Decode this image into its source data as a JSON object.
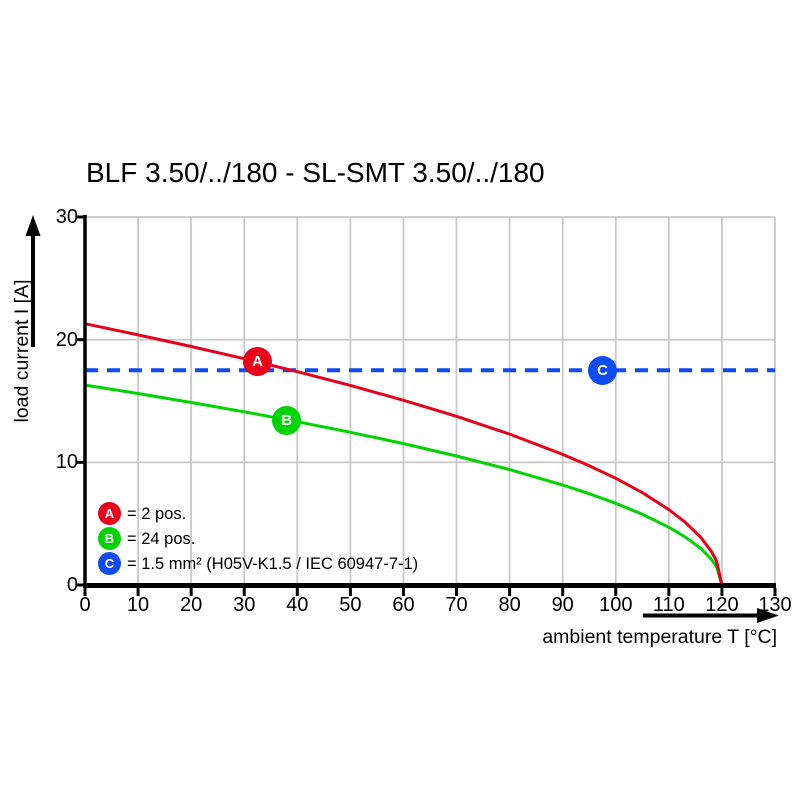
{
  "title": "BLF 3.50/../180 - SL-SMT 3.50/../180",
  "axes": {
    "x_label": "ambient temperature T [°C]",
    "y_label": "load current I [A]",
    "x_ticks": [
      0,
      10,
      20,
      30,
      40,
      50,
      60,
      70,
      80,
      90,
      100,
      110,
      120,
      130
    ],
    "y_ticks": [
      0,
      10,
      20,
      30
    ]
  },
  "colors": {
    "series_a_red": "#e8001b",
    "series_b_green": "#00d400",
    "series_c_blue": "#0d4cf2",
    "grid": "#c9c9c9",
    "axis": "#000000"
  },
  "legend": [
    {
      "key": "A",
      "color": "#e8001b",
      "label": "= 2 pos."
    },
    {
      "key": "B",
      "color": "#00d400",
      "label": "= 24 pos."
    },
    {
      "key": "C",
      "color": "#0d4cf2",
      "label": "= 1.5 mm² (H05V-K1.5 / IEC 60947-7-1)"
    }
  ],
  "markers": [
    {
      "letter": "A",
      "t": 32.5,
      "i": 18.2,
      "color": "#e8001b"
    },
    {
      "letter": "B",
      "t": 38.0,
      "i": 13.4,
      "color": "#00d400"
    },
    {
      "letter": "C",
      "t": 97.5,
      "i": 17.5,
      "color": "#0d4cf2"
    }
  ],
  "chart_data": {
    "type": "line",
    "title": "BLF 3.50/../180 - SL-SMT 3.50/../180",
    "xlabel": "ambient temperature T [°C]",
    "ylabel": "load current I [A]",
    "xlim": [
      0,
      130
    ],
    "ylim": [
      0,
      30
    ],
    "grid": true,
    "legend_position": "lower-left-inside",
    "series": [
      {
        "key": "A",
        "name": "A = 2 pos.",
        "color": "#e8001b",
        "style": "solid",
        "x": [
          0,
          10,
          20,
          30,
          40,
          50,
          60,
          70,
          80,
          90,
          95,
          100,
          105,
          110,
          113,
          116,
          118,
          119,
          120
        ],
        "values": [
          21.3,
          20.39,
          19.44,
          18.45,
          17.39,
          16.27,
          15.06,
          13.75,
          12.3,
          10.65,
          9.72,
          8.7,
          7.53,
          6.15,
          5.14,
          3.89,
          2.75,
          1.94,
          0
        ]
      },
      {
        "key": "B",
        "name": "B = 24 pos.",
        "color": "#00d400",
        "style": "solid",
        "x": [
          0,
          10,
          20,
          30,
          40,
          50,
          60,
          70,
          80,
          90,
          95,
          100,
          105,
          110,
          113,
          116,
          118,
          119,
          120
        ],
        "values": [
          16.3,
          15.61,
          14.88,
          14.12,
          13.31,
          12.45,
          11.53,
          10.52,
          9.41,
          8.15,
          7.44,
          6.65,
          5.76,
          4.71,
          3.94,
          2.98,
          2.1,
          1.49,
          0
        ]
      },
      {
        "key": "C",
        "name": "C = 1.5 mm² (H05V-K1.5 / IEC 60947-7-1)",
        "color": "#0d4cf2",
        "style": "dashed",
        "x": [
          0,
          130
        ],
        "values": [
          17.5,
          17.5
        ]
      }
    ]
  }
}
